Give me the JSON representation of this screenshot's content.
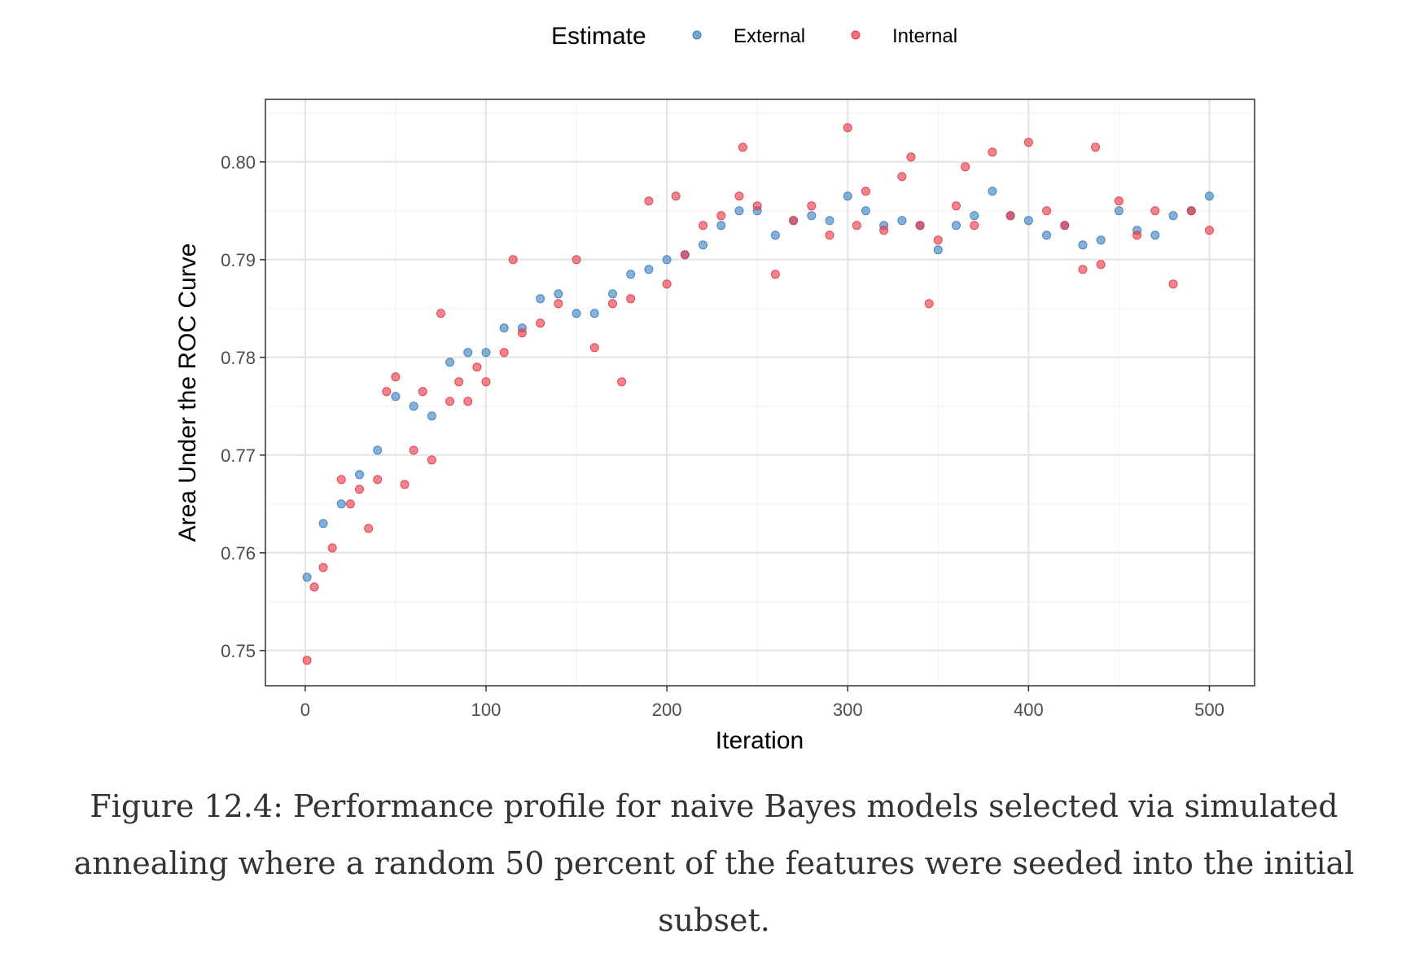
{
  "caption": "Figure 12.4: Performance profile for naive Bayes models selected via simulated annealing where a random 50 percent of the features were seeded into the initial subset.",
  "chart_data": {
    "type": "scatter",
    "title": "",
    "xlabel": "Iteration",
    "ylabel": "Area Under the ROC Curve",
    "xlim": [
      -22,
      525
    ],
    "ylim": [
      0.7464,
      0.8064
    ],
    "xticks": [
      0,
      100,
      200,
      300,
      400,
      500
    ],
    "yticks": [
      0.75,
      0.76,
      0.77,
      0.78,
      0.79,
      0.8
    ],
    "xtick_labels": [
      "0",
      "100",
      "200",
      "300",
      "400",
      "500"
    ],
    "ytick_labels": [
      "0.75",
      "0.76",
      "0.77",
      "0.78",
      "0.79",
      "0.80"
    ],
    "grid": true,
    "legend": {
      "title": "Estimate",
      "position": "top",
      "entries": [
        "External",
        "Internal"
      ]
    },
    "colors": {
      "External": "#3a7fbf",
      "Internal": "#e63946"
    },
    "series": [
      {
        "name": "External",
        "x": [
          1,
          10,
          20,
          30,
          40,
          50,
          60,
          70,
          80,
          90,
          100,
          110,
          120,
          130,
          140,
          150,
          160,
          170,
          180,
          190,
          200,
          210,
          220,
          230,
          240,
          250,
          260,
          270,
          280,
          290,
          300,
          310,
          320,
          330,
          340,
          350,
          360,
          370,
          380,
          390,
          400,
          410,
          420,
          430,
          440,
          450,
          460,
          470,
          480,
          490,
          500
        ],
        "y": [
          0.7575,
          0.763,
          0.765,
          0.768,
          0.7705,
          0.776,
          0.775,
          0.774,
          0.7795,
          0.7805,
          0.7805,
          0.783,
          0.783,
          0.786,
          0.7865,
          0.7845,
          0.7845,
          0.7865,
          0.7885,
          0.789,
          0.79,
          0.7905,
          0.7915,
          0.7935,
          0.795,
          0.795,
          0.7925,
          0.794,
          0.7945,
          0.794,
          0.7965,
          0.795,
          0.7935,
          0.794,
          0.7935,
          0.791,
          0.7935,
          0.7945,
          0.797,
          0.7945,
          0.794,
          0.7925,
          0.7935,
          0.7915,
          0.792,
          0.795,
          0.793,
          0.7925,
          0.7945,
          0.795,
          0.7965
        ]
      },
      {
        "name": "Internal",
        "x": [
          1,
          5,
          10,
          15,
          20,
          25,
          30,
          35,
          40,
          45,
          50,
          55,
          60,
          65,
          70,
          75,
          80,
          85,
          90,
          95,
          100,
          110,
          115,
          120,
          130,
          140,
          150,
          160,
          170,
          175,
          180,
          190,
          200,
          205,
          210,
          220,
          230,
          240,
          242,
          250,
          260,
          270,
          280,
          290,
          300,
          305,
          310,
          320,
          330,
          335,
          340,
          345,
          350,
          360,
          365,
          370,
          380,
          390,
          400,
          410,
          420,
          430,
          437,
          440,
          450,
          460,
          470,
          480,
          490,
          500
        ],
        "y": [
          0.749,
          0.7565,
          0.7585,
          0.7605,
          0.7675,
          0.765,
          0.7665,
          0.7625,
          0.7675,
          0.7765,
          0.778,
          0.767,
          0.7705,
          0.7765,
          0.7695,
          0.7845,
          0.7755,
          0.7775,
          0.7755,
          0.779,
          0.7775,
          0.7805,
          0.79,
          0.7825,
          0.7835,
          0.7855,
          0.79,
          0.781,
          0.7855,
          0.7775,
          0.786,
          0.796,
          0.7875,
          0.7965,
          0.7905,
          0.7935,
          0.7945,
          0.7965,
          0.8015,
          0.7955,
          0.7885,
          0.794,
          0.7955,
          0.7925,
          0.8035,
          0.7935,
          0.797,
          0.793,
          0.7985,
          0.8005,
          0.7935,
          0.7855,
          0.792,
          0.7955,
          0.7995,
          0.7935,
          0.801,
          0.7945,
          0.802,
          0.795,
          0.7935,
          0.789,
          0.8015,
          0.7895,
          0.796,
          0.7925,
          0.795,
          0.7875,
          0.795,
          0.793
        ]
      }
    ]
  }
}
